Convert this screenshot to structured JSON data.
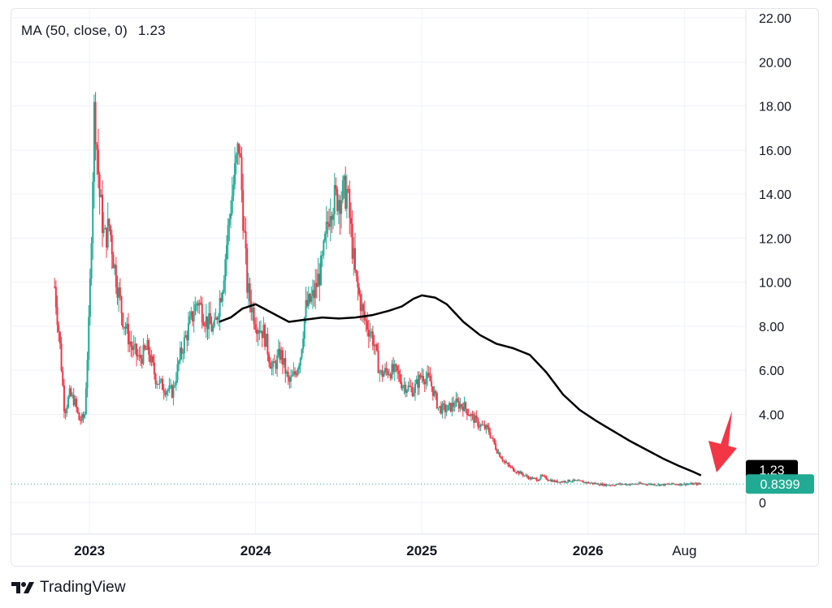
{
  "colors": {
    "up": "#22ab94",
    "down": "#f23645",
    "ma_line": "#000000",
    "grid": "#f0f3fa",
    "arrow": "#f23645",
    "last_price_bg": "#22ab94",
    "ma_label_bg": "#000000"
  },
  "legend": {
    "indicator": "MA (50, close, 0)",
    "value": "1.23"
  },
  "brand": {
    "name": "TradingView",
    "logo_icon": "tradingview-logo-icon"
  },
  "chart_data": {
    "type": "line",
    "subtype": "candlestick-with-moving-average",
    "title": "",
    "xlabel": "",
    "ylabel": "",
    "ylim": [
      -0.5,
      22
    ],
    "y_ticks": [
      "22.00",
      "20.00",
      "18.00",
      "16.00",
      "14.00",
      "12.00",
      "10.00",
      "8.00",
      "6.00",
      "4.00",
      "0"
    ],
    "x_ticks": [
      {
        "label": "2023",
        "x": 2023.0
      },
      {
        "label": "2024",
        "x": 2024.0
      },
      {
        "label": "2025",
        "x": 2025.0
      },
      {
        "label": "2026",
        "x": 2026.0
      },
      {
        "label": "Aug",
        "x": 2026.58
      }
    ],
    "xlim": [
      2022.53,
      2026.95
    ],
    "grid": true,
    "last_price": {
      "label": "0.8399",
      "value": 0.84
    },
    "ma_last": {
      "label": "1.23",
      "value": 1.23
    },
    "price_series": {
      "name": "",
      "x": [
        2022.79,
        2022.82,
        2022.85,
        2022.88,
        2022.91,
        2022.94,
        2022.97,
        2023.0,
        2023.03,
        2023.06,
        2023.09,
        2023.12,
        2023.15,
        2023.2,
        2023.25,
        2023.3,
        2023.35,
        2023.4,
        2023.45,
        2023.5,
        2023.55,
        2023.6,
        2023.65,
        2023.7,
        2023.75,
        2023.8,
        2023.85,
        2023.9,
        2023.95,
        2024.0,
        2024.05,
        2024.1,
        2024.15,
        2024.2,
        2024.24,
        2024.27,
        2024.3,
        2024.35,
        2024.4,
        2024.45,
        2024.5,
        2024.55,
        2024.6,
        2024.65,
        2024.7,
        2024.75,
        2024.8,
        2024.85,
        2024.88,
        2024.92,
        2024.95,
        2025.0,
        2025.05,
        2025.1,
        2025.15,
        2025.2,
        2025.25,
        2025.3,
        2025.35,
        2025.4,
        2025.45,
        2025.5,
        2025.55,
        2025.6,
        2025.65,
        2025.7,
        2025.72,
        2025.76,
        2025.8,
        2025.85,
        2025.9,
        2025.95,
        2026.0,
        2026.05,
        2026.1,
        2026.15,
        2026.2,
        2026.25,
        2026.3,
        2026.35,
        2026.4,
        2026.45,
        2026.5,
        2026.55,
        2026.6,
        2026.65,
        2026.68
      ],
      "y": [
        9.8,
        7.4,
        4.1,
        4.9,
        4.6,
        3.7,
        3.9,
        8.7,
        18.2,
        14.0,
        11.9,
        12.6,
        10.7,
        8.4,
        7.1,
        6.5,
        7.0,
        5.6,
        5.2,
        5.0,
        6.8,
        8.0,
        9.2,
        8.3,
        7.8,
        9.9,
        13.5,
        16.3,
        9.7,
        8.2,
        7.7,
        6.0,
        6.8,
        5.4,
        5.9,
        6.7,
        8.8,
        9.4,
        10.8,
        13.6,
        13.9,
        14.1,
        10.2,
        8.4,
        7.6,
        5.8,
        6.0,
        5.9,
        5.4,
        5.2,
        5.1,
        5.8,
        5.5,
        4.3,
        4.2,
        4.5,
        4.4,
        3.9,
        3.5,
        3.3,
        2.4,
        1.8,
        1.5,
        1.3,
        1.1,
        1.05,
        1.2,
        1.05,
        0.95,
        0.95,
        1.0,
        0.95,
        0.9,
        0.85,
        0.8,
        0.8,
        0.84,
        0.82,
        0.85,
        0.84,
        0.82,
        0.8,
        0.84,
        0.83,
        0.84,
        0.84,
        0.84
      ]
    },
    "ma_series": {
      "name": "MA (50, close, 0)",
      "x": [
        2023.78,
        2023.85,
        2023.92,
        2024.0,
        2024.1,
        2024.2,
        2024.3,
        2024.4,
        2024.5,
        2024.6,
        2024.7,
        2024.8,
        2024.88,
        2024.95,
        2025.0,
        2025.08,
        2025.15,
        2025.25,
        2025.35,
        2025.45,
        2025.55,
        2025.65,
        2025.75,
        2025.85,
        2025.95,
        2026.05,
        2026.15,
        2026.25,
        2026.35,
        2026.45,
        2026.55,
        2026.63,
        2026.68
      ],
      "y": [
        8.2,
        8.4,
        8.8,
        9.0,
        8.6,
        8.2,
        8.3,
        8.4,
        8.35,
        8.4,
        8.5,
        8.7,
        8.9,
        9.25,
        9.4,
        9.3,
        9.0,
        8.2,
        7.6,
        7.2,
        7.0,
        6.7,
        5.9,
        4.9,
        4.2,
        3.7,
        3.25,
        2.8,
        2.4,
        2.0,
        1.65,
        1.4,
        1.23
      ]
    }
  }
}
